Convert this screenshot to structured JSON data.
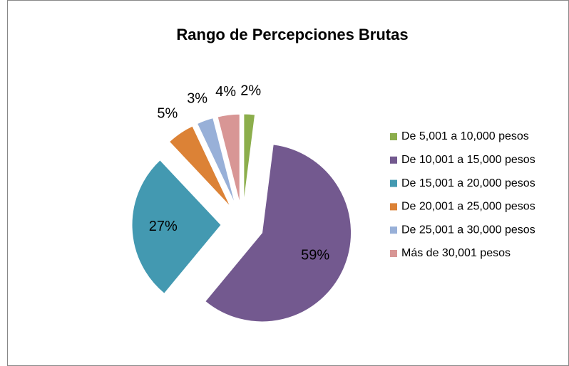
{
  "chart_data": {
    "type": "pie",
    "title": "Rango de Percepciones Brutas",
    "categories": [
      "De 5,001 a 10,000 pesos",
      "De 10,001 a 15,000 pesos",
      "De 15,001 a 20,000 pesos",
      "De 20,001 a 25,000 pesos",
      "De 25,001 a 30,000 pesos",
      "Más de 30,001 pesos"
    ],
    "values": [
      2,
      59,
      27,
      5,
      3,
      4
    ],
    "value_labels": [
      "2%",
      "59%",
      "27%",
      "5%",
      "3%",
      "4%"
    ],
    "colors": [
      "#8cae4c",
      "#73598f",
      "#4399b1",
      "#dc8236",
      "#98b0d8",
      "#d89695"
    ],
    "legend": "right"
  }
}
